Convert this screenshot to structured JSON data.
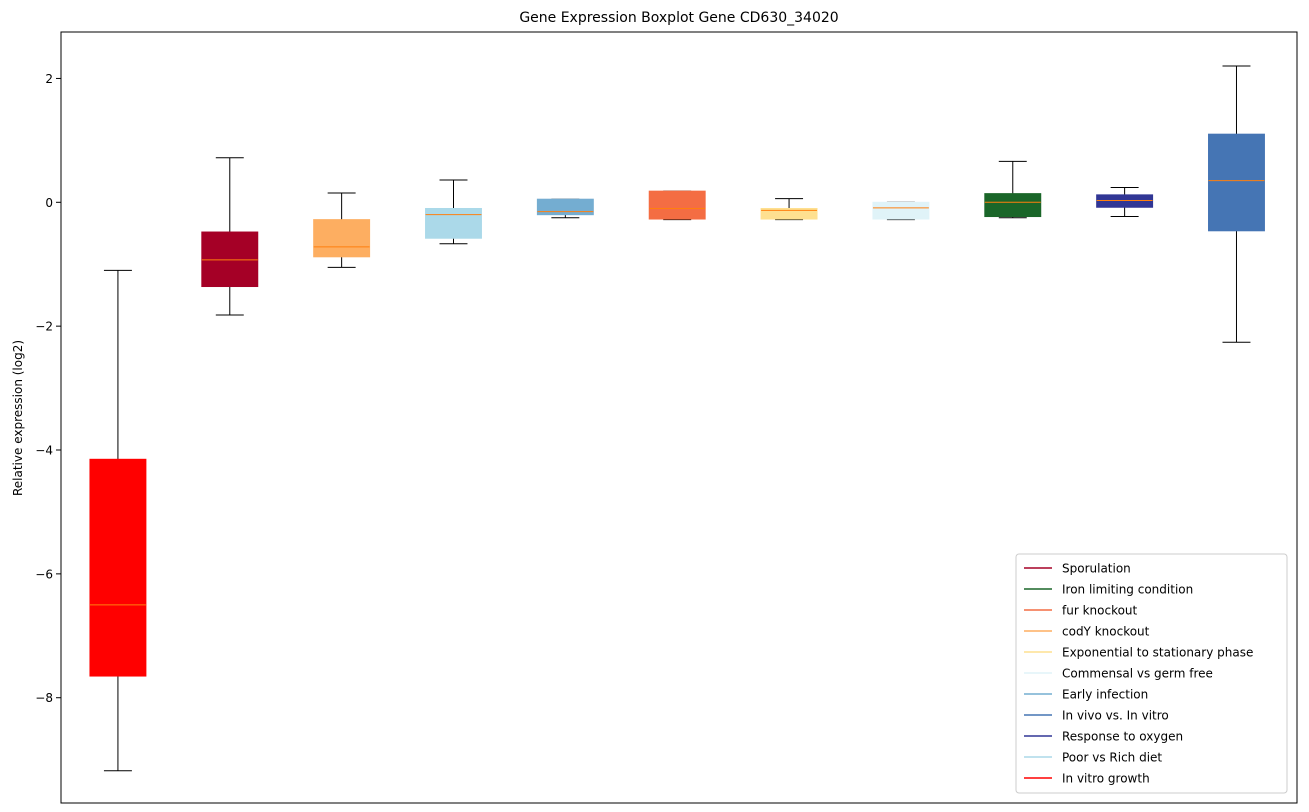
{
  "chart_data": {
    "type": "box",
    "title": "Gene Expression Boxplot Gene CD630_34020",
    "ylabel": "Relative expression (log2)",
    "xlabel": "",
    "ylim": [
      -9.7,
      2.75
    ],
    "yticks": [
      -8,
      -6,
      -4,
      -2,
      0,
      2
    ],
    "ytick_labels": [
      "−8",
      "−6",
      "−4",
      "−2",
      "0",
      "2"
    ],
    "grid": false,
    "legend_position": "lower-right",
    "median_color": "#ff7f0e",
    "boxes": [
      {
        "color": "#ff0000",
        "whislo": -9.18,
        "q1": -7.65,
        "med": -6.5,
        "q3": -4.15,
        "whishi": -1.1
      },
      {
        "color": "#a50026",
        "whislo": -1.82,
        "q1": -1.36,
        "med": -0.93,
        "q3": -0.48,
        "whishi": 0.72
      },
      {
        "color": "#fdae61",
        "whislo": -1.05,
        "q1": -0.88,
        "med": -0.72,
        "q3": -0.28,
        "whishi": 0.15
      },
      {
        "color": "#abd9e9",
        "whislo": -0.67,
        "q1": -0.58,
        "med": -0.2,
        "q3": -0.1,
        "whishi": 0.36
      },
      {
        "color": "#74add1",
        "whislo": -0.25,
        "q1": -0.2,
        "med": -0.15,
        "q3": 0.05,
        "whishi": 0.05
      },
      {
        "color": "#f46d43",
        "whislo": -0.28,
        "q1": -0.27,
        "med": -0.1,
        "q3": 0.18,
        "whishi": 0.18
      },
      {
        "color": "#fee090",
        "whislo": -0.28,
        "q1": -0.27,
        "med": -0.13,
        "q3": -0.1,
        "whishi": 0.06
      },
      {
        "color": "#e0f3f8",
        "whislo": -0.28,
        "q1": -0.27,
        "med": -0.09,
        "q3": 0.0,
        "whishi": 0.0
      },
      {
        "color": "#1a6629",
        "whislo": -0.25,
        "q1": -0.23,
        "med": 0.0,
        "q3": 0.14,
        "whishi": 0.66
      },
      {
        "color": "#313695",
        "whislo": -0.23,
        "q1": -0.08,
        "med": 0.03,
        "q3": 0.12,
        "whishi": 0.24
      },
      {
        "color": "#4575b4",
        "whislo": -2.26,
        "q1": -0.46,
        "med": 0.35,
        "q3": 1.1,
        "whishi": 2.2
      }
    ],
    "legend": [
      {
        "label": "Sporulation",
        "color": "#a50026"
      },
      {
        "label": "Iron limiting condition",
        "color": "#1a6629"
      },
      {
        "label": "fur knockout",
        "color": "#f46d43"
      },
      {
        "label": "codY knockout",
        "color": "#fdae61"
      },
      {
        "label": "Exponential to stationary phase",
        "color": "#fee090"
      },
      {
        "label": "Commensal vs germ free",
        "color": "#e0f3f8"
      },
      {
        "label": "Early infection",
        "color": "#74add1"
      },
      {
        "label": "In vivo vs. In vitro",
        "color": "#4575b4"
      },
      {
        "label": "Response to oxygen",
        "color": "#313695"
      },
      {
        "label": "Poor vs Rich diet",
        "color": "#abd9e9"
      },
      {
        "label": "In vitro growth",
        "color": "#ff0000"
      }
    ]
  }
}
